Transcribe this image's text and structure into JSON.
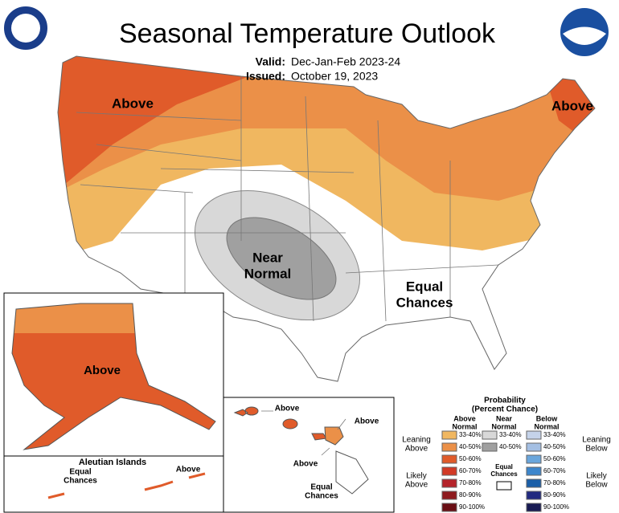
{
  "header": {
    "title": "Seasonal Temperature Outlook",
    "valid_label": "Valid:",
    "valid": "Dec-Jan-Feb 2023-24",
    "issued_label": "Issued:",
    "issued": "October 19, 2023"
  },
  "map_labels": {
    "northwest": "Above",
    "northeast": "Above",
    "near_normal": [
      "Near",
      "Normal"
    ],
    "equal_chances": [
      "Equal",
      "Chances"
    ]
  },
  "alaska": {
    "label": "Above",
    "aleutian_title": "Aleutian Islands",
    "aleutian_equal": [
      "Equal",
      "Chances"
    ],
    "aleutian_above": "Above"
  },
  "hawaii": {
    "labels": [
      "Above",
      "Above",
      "Above"
    ],
    "equal": [
      "Equal",
      "Chances"
    ]
  },
  "legend": {
    "title": "Probability",
    "subtitle": "(Percent Chance)",
    "columns": [
      {
        "name": [
          "Above",
          "Normal"
        ],
        "items": [
          {
            "label": "33-40%",
            "color": "#f0b760"
          },
          {
            "label": "40-50%",
            "color": "#eb9048"
          },
          {
            "label": "50-60%",
            "color": "#e05b2a"
          },
          {
            "label": "60-70%",
            "color": "#d23a26"
          },
          {
            "label": "70-80%",
            "color": "#b5232a"
          },
          {
            "label": "80-90%",
            "color": "#8e1a1e"
          },
          {
            "label": "90-100%",
            "color": "#6a0e14"
          }
        ]
      },
      {
        "name": [
          "Near",
          "Normal"
        ],
        "items": [
          {
            "label": "33-40%",
            "color": "#d8d8d8"
          },
          {
            "label": "40-50%",
            "color": "#a0a0a0"
          }
        ]
      },
      {
        "name": [
          "Below",
          "Normal"
        ],
        "items": [
          {
            "label": "33-40%",
            "color": "#c5d3ea"
          },
          {
            "label": "40-50%",
            "color": "#a4bfe3"
          },
          {
            "label": "50-60%",
            "color": "#6aa6dc"
          },
          {
            "label": "60-70%",
            "color": "#3d86cc"
          },
          {
            "label": "70-80%",
            "color": "#1a5fa8"
          },
          {
            "label": "80-90%",
            "color": "#222a80"
          },
          {
            "label": "90-100%",
            "color": "#171a52"
          }
        ]
      }
    ],
    "leaning_above": [
      "Leaning",
      "Above"
    ],
    "likely_above": [
      "Likely",
      "Above"
    ],
    "leaning_below": [
      "Leaning",
      "Below"
    ],
    "likely_below": [
      "Likely",
      "Below"
    ],
    "equal_chances": [
      "Equal",
      "Chances"
    ]
  }
}
